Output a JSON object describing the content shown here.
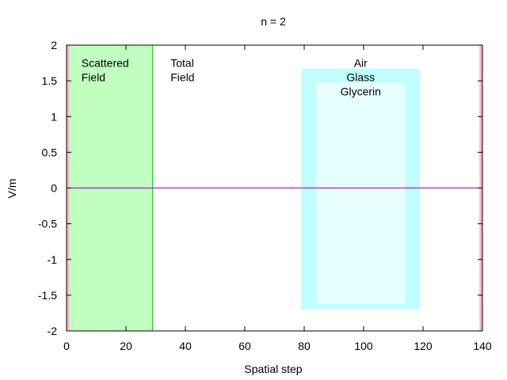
{
  "chart_data": {
    "type": "line",
    "title": "n = 2",
    "xlabel": "Spatial step",
    "ylabel": "V/m",
    "xlim": [
      0,
      140
    ],
    "ylim": [
      -2,
      2
    ],
    "x_ticks": [
      0,
      20,
      40,
      60,
      80,
      100,
      120,
      140
    ],
    "y_ticks": [
      -2,
      -1.5,
      -1,
      -0.5,
      0,
      0.5,
      1,
      1.5,
      2
    ],
    "grid": false,
    "series": [
      {
        "x": [
          0,
          139
        ],
        "values": [
          0,
          0
        ],
        "color": "#9400d3"
      }
    ],
    "regions": [
      {
        "x0": 0,
        "x1": 1,
        "y0": -2,
        "y1": 2,
        "color": "#ffb6c1"
      },
      {
        "x0": 139,
        "x1": 140,
        "y0": -2,
        "y1": 2,
        "color": "#ffb6c1"
      },
      {
        "x0": 1,
        "x1": 29,
        "y0": -2,
        "y1": 2,
        "color": "#c1ffc1",
        "border": "#00c000"
      },
      {
        "x0": 79,
        "x1": 119,
        "y0": -1.7,
        "y1": 1.67,
        "color": "#c0ffff"
      },
      {
        "x0": 84,
        "x1": 114,
        "y0": -1.62,
        "y1": 1.48,
        "color": "#e8ffff"
      }
    ],
    "annotations": [
      {
        "lines": [
          "Scattered",
          "Field"
        ],
        "x": 5,
        "y": 1.75,
        "align": "start"
      },
      {
        "lines": [
          "Total",
          "Field"
        ],
        "x": 35,
        "y": 1.75,
        "align": "start"
      },
      {
        "lines": [
          "Air",
          "Glass",
          "Glycerin"
        ],
        "x": 99,
        "y": 1.75,
        "align": "middle"
      }
    ]
  }
}
